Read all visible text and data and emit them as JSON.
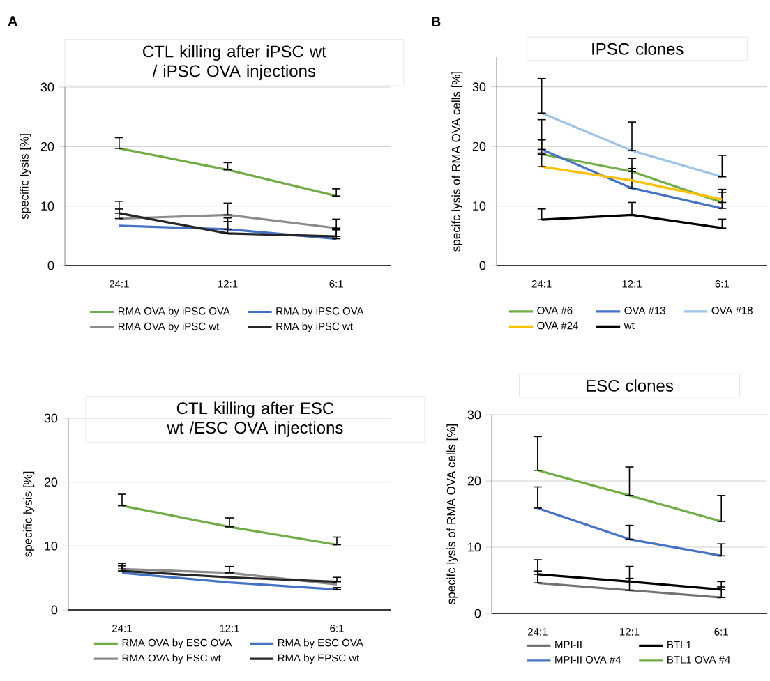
{
  "chart_data": [
    {
      "type": "line",
      "title": "CTL killing after iPSC wt / iPSC OVA injections",
      "ylabel": "specific lysis [%]",
      "annotations": [
        "A"
      ],
      "categories": [
        "24:1",
        "12:1",
        "6:1"
      ],
      "ylim": [
        0,
        30
      ],
      "yticks": [
        0,
        10,
        20,
        30
      ],
      "grid": "y",
      "legend": "bottom",
      "series": [
        {
          "name": "RMA OVA by iPSC OVA",
          "color": "#70ad47",
          "values": [
            19.7,
            16.1,
            11.7
          ],
          "errors": [
            [
              19.7,
              21.5
            ],
            [
              16.1,
              17.3
            ],
            [
              11.7,
              12.9
            ]
          ]
        },
        {
          "name": "RMA by iPSC OVA",
          "color": "#4472c4",
          "values": [
            6.7,
            6.1,
            4.5
          ],
          "errors": [
            null,
            [
              6.1,
              7.4
            ],
            [
              4.5,
              6.0
            ]
          ]
        },
        {
          "name": "RMA OVA by iPSC wt",
          "color": "#8c8c8c",
          "values": [
            7.9,
            8.5,
            6.3
          ],
          "errors": [
            [
              7.9,
              9.5
            ],
            [
              8.5,
              10.5
            ],
            [
              6.3,
              7.8
            ]
          ]
        },
        {
          "name": "RMA by iPSC wt",
          "color": "#262626",
          "values": [
            8.8,
            5.4,
            4.9
          ],
          "errors": [
            [
              8.8,
              10.8
            ],
            [
              5.4,
              8.0
            ],
            [
              4.9,
              6.2
            ]
          ]
        }
      ]
    },
    {
      "type": "line",
      "title": "IPSC clones",
      "ylabel": "specifc lysis of RMA OVA cells [%]",
      "annotations": [
        "B"
      ],
      "categories": [
        "24:1",
        "12:1",
        "6:1"
      ],
      "ylim": [
        0,
        35
      ],
      "yticks": [
        0,
        10,
        20,
        30
      ],
      "grid": "y",
      "legend": "bottom",
      "series": [
        {
          "name": "OVA #6",
          "color": "#70ad47",
          "values": [
            18.7,
            15.8,
            10.6
          ],
          "errors": [
            [
              18.7,
              21.1
            ],
            [
              15.8,
              18.0
            ],
            [
              10.6,
              12.8
            ]
          ]
        },
        {
          "name": "OVA #13",
          "color": "#4472c4",
          "values": [
            19.5,
            13.0,
            9.6
          ],
          "errors": [
            [
              19.5,
              24.5
            ],
            [
              13.0,
              16.3
            ],
            [
              9.6,
              12.3
            ]
          ]
        },
        {
          "name": "OVA #18",
          "color": "#9dc3e6",
          "values": [
            25.6,
            19.3,
            14.9
          ],
          "errors": [
            [
              25.6,
              31.4
            ],
            [
              19.3,
              24.1
            ],
            [
              14.9,
              18.5
            ]
          ]
        },
        {
          "name": "OVA #24",
          "color": "#ffc000",
          "values": [
            16.6,
            14.3,
            11.1
          ],
          "errors": [
            [
              16.6,
              18.9
            ],
            null,
            null
          ]
        },
        {
          "name": "wt",
          "color": "#000000",
          "values": [
            7.7,
            8.5,
            6.3
          ],
          "errors": [
            [
              7.7,
              9.5
            ],
            [
              8.5,
              10.6
            ],
            [
              6.3,
              7.8
            ]
          ]
        }
      ]
    },
    {
      "type": "line",
      "title": "CTL killing after ESC wt /ESC OVA injections",
      "ylabel": "specific lysis [%]",
      "categories": [
        "24:1",
        "12:1",
        "6:1"
      ],
      "ylim": [
        0,
        30
      ],
      "yticks": [
        0,
        10,
        20,
        30
      ],
      "grid": "y",
      "legend": "bottom",
      "series": [
        {
          "name": "RMA OVA by ESC OVA",
          "color": "#70ad47",
          "values": [
            16.3,
            13.0,
            10.2
          ],
          "errors": [
            [
              16.3,
              18.1
            ],
            [
              13.0,
              14.4
            ],
            [
              10.2,
              11.4
            ]
          ]
        },
        {
          "name": "RMA by ESC OVA",
          "color": "#4472c4",
          "values": [
            5.8,
            4.3,
            3.2
          ],
          "errors": [
            null,
            null,
            [
              3.2,
              3.5
            ]
          ]
        },
        {
          "name": "RMA OVA by ESC wt",
          "color": "#8c8c8c",
          "values": [
            6.4,
            5.8,
            4.0
          ],
          "errors": [
            [
              6.4,
              7.3
            ],
            [
              5.8,
              6.8
            ],
            null
          ]
        },
        {
          "name": "RMA by EPSC wt",
          "color": "#262626",
          "values": [
            6.1,
            5.1,
            4.4
          ],
          "errors": [
            [
              6.1,
              6.9
            ],
            null,
            [
              4.4,
              5.1
            ]
          ]
        }
      ]
    },
    {
      "type": "line",
      "title": "ESC clones",
      "ylabel": "specifc lysis of RMA OVA cells [%]",
      "categories": [
        "24:1",
        "12:1",
        "6:1"
      ],
      "ylim": [
        0,
        30
      ],
      "yticks": [
        0,
        10,
        20,
        30
      ],
      "grid": "y",
      "legend": "bottom",
      "series": [
        {
          "name": "MPI-II",
          "color": "#767171",
          "values": [
            4.6,
            3.5,
            2.4
          ],
          "errors": [
            [
              4.6,
              6.4
            ],
            [
              3.5,
              5.3
            ],
            [
              2.4,
              4.0
            ]
          ]
        },
        {
          "name": "BTL1",
          "color": "#000000",
          "values": [
            5.9,
            4.8,
            3.6
          ],
          "errors": [
            [
              5.9,
              8.1
            ],
            [
              4.8,
              7.1
            ],
            [
              3.6,
              4.8
            ]
          ]
        },
        {
          "name": "MPI-II OVA #4",
          "color": "#4472c4",
          "values": [
            15.9,
            11.2,
            8.7
          ],
          "errors": [
            [
              15.9,
              19.1
            ],
            [
              11.2,
              13.3
            ],
            [
              8.7,
              10.5
            ]
          ]
        },
        {
          "name": "BTL1 OVA #4",
          "color": "#70ad47",
          "values": [
            21.6,
            17.8,
            13.9
          ],
          "errors": [
            [
              21.6,
              26.7
            ],
            [
              17.8,
              22.1
            ],
            [
              13.9,
              17.8
            ]
          ]
        }
      ]
    }
  ]
}
